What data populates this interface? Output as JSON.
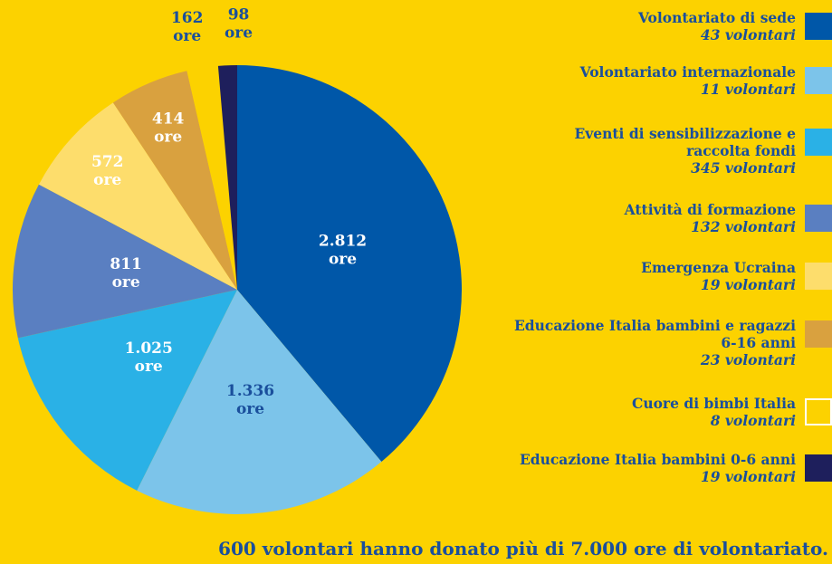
{
  "chart_data": {
    "type": "pie",
    "categories": [
      "Volontariato di sede",
      "Volontariato internazionale",
      "Eventi di sensibilizzazione e raccolta fondi",
      "Attività di formazione",
      "Emergenza Ucraina",
      "Educazione Italia bambini e ragazzi 6-16 anni",
      "Cuore di bimbi Italia",
      "Educazione Italia bambini 0-6 anni"
    ],
    "volunteers": [
      "43 volontari",
      "11 volontari",
      "345 volontari",
      "132 volontari",
      "19 volontari",
      "23 volontari",
      "8 volontari",
      "19 volontari"
    ],
    "values": [
      2812,
      1336,
      1025,
      811,
      572,
      414,
      162,
      98
    ],
    "value_labels": [
      "2.812",
      "1.336",
      "1.025",
      "811",
      "572",
      "414",
      "162",
      "98"
    ],
    "unit_label": "ore",
    "colors": [
      "#0057a8",
      "#7cc4ea",
      "#2ab1e6",
      "#5a7fc1",
      "#fddd6c",
      "#d9a13f",
      "#fcd200",
      "#1e1f5c"
    ],
    "footer": "600 volontari hanno donato più di 7.000 ore di volontariato."
  }
}
